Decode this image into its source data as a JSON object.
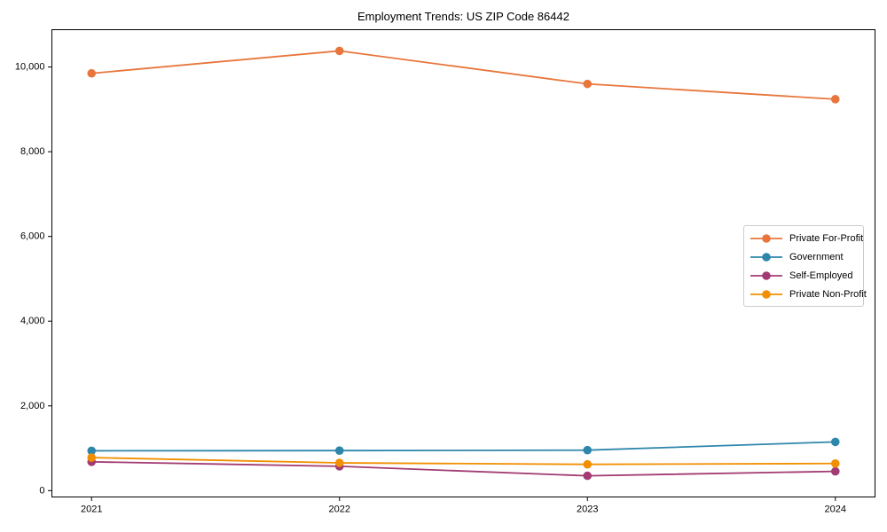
{
  "page": {
    "background": "#ffffff",
    "text_color": "#000000",
    "spine_color": "#000000",
    "legend_border_color": "#cccccc"
  },
  "chart_data": {
    "type": "line",
    "title": "Employment Trends: US ZIP Code 86442",
    "xlabel": "",
    "ylabel": "",
    "x": [
      2021,
      2022,
      2023,
      2024
    ],
    "xtick_labels": [
      "2021",
      "2022",
      "2023",
      "2024"
    ],
    "series": [
      {
        "name": "Private For-Profit",
        "color": "#E8763C",
        "values": [
          9850,
          10380,
          9600,
          9240
        ]
      },
      {
        "name": "Government",
        "color": "#2E86AB",
        "values": [
          940,
          945,
          955,
          1150
        ]
      },
      {
        "name": "Self-Employed",
        "color": "#A23B72",
        "values": [
          680,
          575,
          350,
          455
        ]
      },
      {
        "name": "Private Non-Profit",
        "color": "#F18F01",
        "values": [
          780,
          655,
          620,
          640
        ]
      }
    ],
    "yticks": [
      0,
      2000,
      4000,
      6000,
      8000,
      10000
    ],
    "ytick_labels": [
      "0",
      "2,000",
      "4,000",
      "6,000",
      "8,000",
      "10,000"
    ],
    "xlim": [
      2020.84,
      2024.16
    ],
    "ylim": [
      -150,
      10880
    ],
    "grid": false,
    "legend_position": "center right",
    "marker": "circle"
  }
}
